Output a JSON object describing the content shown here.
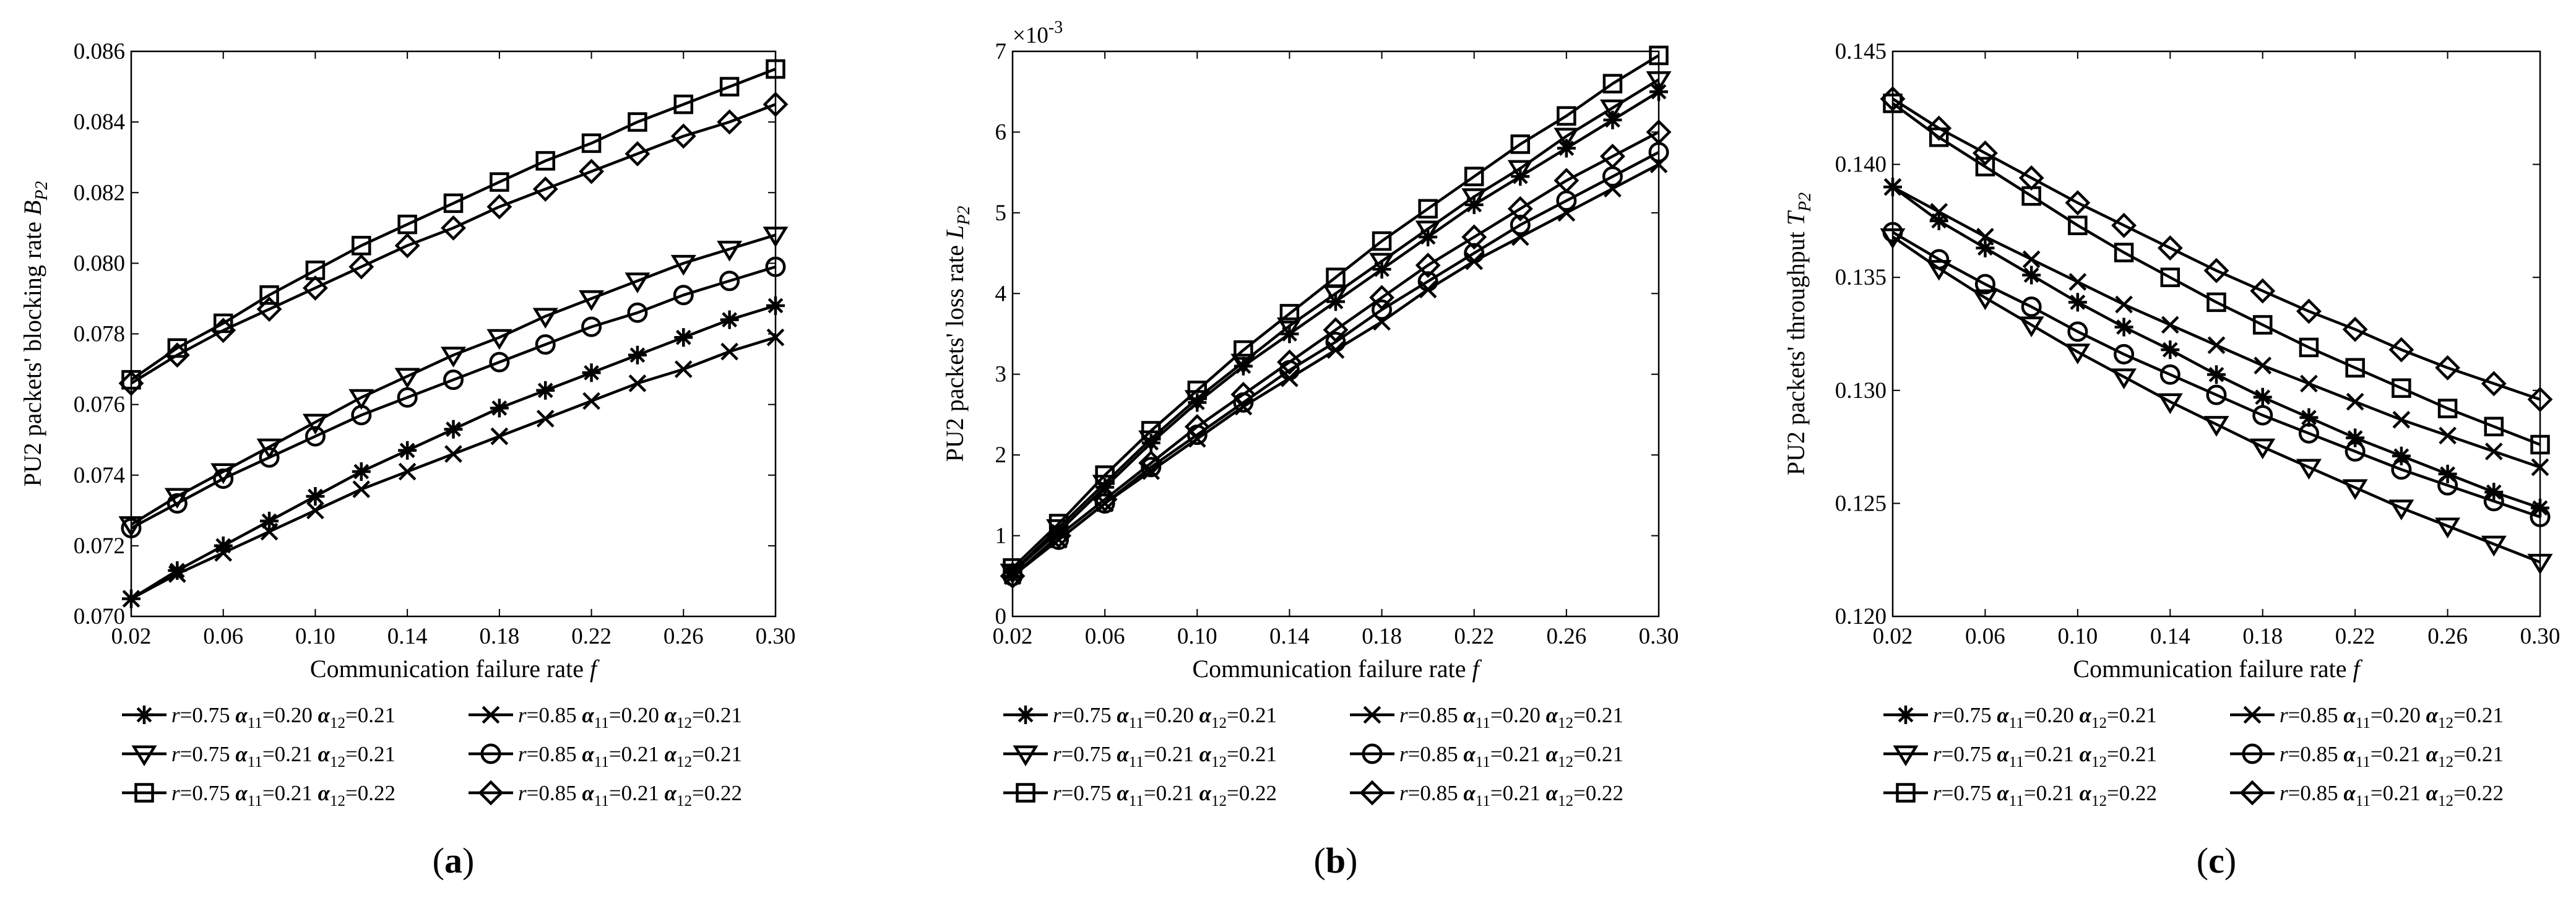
{
  "chart_data": [
    {
      "type": "line",
      "panel_label": "a",
      "xlabel": "Communication failure rate f",
      "ylabel": "PU2 packets' blocking rate B_P2",
      "ylabel_text": "PU2 packets' blocking rate ",
      "ylabel_sym": "B",
      "ylabel_sub": "P2",
      "exponent": "",
      "xlim": [
        0.02,
        0.3
      ],
      "ylim": [
        0.07,
        0.086
      ],
      "xticks": [
        "0.02",
        "0.06",
        "0.10",
        "0.14",
        "0.18",
        "0.22",
        "0.26",
        "0.30"
      ],
      "yticks": [
        "0.070",
        "0.072",
        "0.074",
        "0.076",
        "0.078",
        "0.080",
        "0.082",
        "0.084",
        "0.086"
      ],
      "x": [
        0.02,
        0.04,
        0.06,
        0.08,
        0.1,
        0.12,
        0.14,
        0.16,
        0.18,
        0.2,
        0.22,
        0.24,
        0.26,
        0.28,
        0.3
      ],
      "series": [
        {
          "name": "r=0.75 α11=0.20 α12=0.21",
          "marker": "asterisk",
          "values": [
            0.0705,
            0.0713,
            0.072,
            0.0727,
            0.0734,
            0.0741,
            0.0747,
            0.0753,
            0.0759,
            0.0764,
            0.0769,
            0.0774,
            0.0779,
            0.0784,
            0.0788
          ]
        },
        {
          "name": "r=0.85 α11=0.20 α12=0.21",
          "marker": "x",
          "values": [
            0.0705,
            0.0712,
            0.0718,
            0.0724,
            0.073,
            0.0736,
            0.0741,
            0.0746,
            0.0751,
            0.0756,
            0.0761,
            0.0766,
            0.077,
            0.0775,
            0.0779
          ]
        },
        {
          "name": "r=0.75 α11=0.21 α12=0.21",
          "marker": "triangle-down",
          "values": [
            0.0726,
            0.0734,
            0.0741,
            0.0748,
            0.0755,
            0.0762,
            0.0768,
            0.0774,
            0.0779,
            0.0785,
            0.079,
            0.0795,
            0.08,
            0.0804,
            0.0808
          ]
        },
        {
          "name": "r=0.85 α11=0.21 α12=0.21",
          "marker": "circle",
          "values": [
            0.0725,
            0.0732,
            0.0739,
            0.0745,
            0.0751,
            0.0757,
            0.0762,
            0.0767,
            0.0772,
            0.0777,
            0.0782,
            0.0786,
            0.0791,
            0.0795,
            0.0799
          ]
        },
        {
          "name": "r=0.75 α11=0.21 α12=0.22",
          "marker": "square",
          "values": [
            0.0767,
            0.0776,
            0.0783,
            0.0791,
            0.0798,
            0.0805,
            0.0811,
            0.0817,
            0.0823,
            0.0829,
            0.0834,
            0.084,
            0.0845,
            0.085,
            0.0855
          ]
        },
        {
          "name": "r=0.85 α11=0.21 α12=0.22",
          "marker": "diamond",
          "values": [
            0.0766,
            0.0774,
            0.0781,
            0.0787,
            0.0793,
            0.0799,
            0.0805,
            0.081,
            0.0816,
            0.0821,
            0.0826,
            0.0831,
            0.0836,
            0.084,
            0.0845
          ]
        }
      ]
    },
    {
      "type": "line",
      "panel_label": "b",
      "xlabel": "Communication failure rate f",
      "ylabel": "PU2 packets' loss rate L_P2",
      "ylabel_text": "PU2 packets' loss rate ",
      "ylabel_sym": "L",
      "ylabel_sub": "P2",
      "exponent": "×10^-3",
      "exponent_base": "×10",
      "exponent_power": "-3",
      "xlim": [
        0.02,
        0.3
      ],
      "ylim": [
        0,
        7
      ],
      "xticks": [
        "0.02",
        "0.06",
        "0.10",
        "0.14",
        "0.18",
        "0.22",
        "0.26",
        "0.30"
      ],
      "yticks": [
        "0",
        "1",
        "2",
        "3",
        "4",
        "5",
        "6",
        "7"
      ],
      "x": [
        0.02,
        0.04,
        0.06,
        0.08,
        0.1,
        0.12,
        0.14,
        0.16,
        0.18,
        0.2,
        0.22,
        0.24,
        0.26,
        0.28,
        0.3
      ],
      "series": [
        {
          "name": "r=0.75 α11=0.20 α12=0.21",
          "marker": "asterisk",
          "values": [
            0.55,
            1.05,
            1.6,
            2.15,
            2.65,
            3.1,
            3.5,
            3.9,
            4.3,
            4.7,
            5.1,
            5.45,
            5.8,
            6.15,
            6.5
          ]
        },
        {
          "name": "r=0.85 α11=0.20 α12=0.21",
          "marker": "x",
          "values": [
            0.5,
            0.95,
            1.4,
            1.8,
            2.2,
            2.6,
            2.95,
            3.3,
            3.65,
            4.05,
            4.4,
            4.7,
            5.0,
            5.3,
            5.6
          ]
        },
        {
          "name": "r=0.75 α11=0.21 α12=0.21",
          "marker": "triangle-down",
          "values": [
            0.55,
            1.1,
            1.65,
            2.2,
            2.7,
            3.15,
            3.6,
            4.0,
            4.4,
            4.8,
            5.2,
            5.55,
            5.95,
            6.3,
            6.65
          ]
        },
        {
          "name": "r=0.85 α11=0.21 α12=0.21",
          "marker": "circle",
          "values": [
            0.5,
            0.95,
            1.4,
            1.85,
            2.25,
            2.65,
            3.05,
            3.4,
            3.8,
            4.15,
            4.5,
            4.85,
            5.15,
            5.45,
            5.75
          ]
        },
        {
          "name": "r=0.75 α11=0.21 α12=0.22",
          "marker": "square",
          "values": [
            0.6,
            1.15,
            1.75,
            2.3,
            2.8,
            3.3,
            3.75,
            4.2,
            4.65,
            5.05,
            5.45,
            5.85,
            6.2,
            6.6,
            6.95
          ]
        },
        {
          "name": "r=0.85 α11=0.21 α12=0.22",
          "marker": "diamond",
          "values": [
            0.5,
            1.0,
            1.45,
            1.9,
            2.35,
            2.75,
            3.15,
            3.55,
            3.95,
            4.35,
            4.7,
            5.05,
            5.4,
            5.7,
            6.0
          ]
        }
      ]
    },
    {
      "type": "line",
      "panel_label": "c",
      "xlabel": "Communication failure rate f",
      "ylabel": "PU2 packets' throughput T_P2",
      "ylabel_text": "PU2 packets' throughput ",
      "ylabel_sym": "T",
      "ylabel_sub": "P2",
      "exponent": "",
      "xlim": [
        0.02,
        0.3
      ],
      "ylim": [
        0.12,
        0.145
      ],
      "xticks": [
        "0.02",
        "0.06",
        "0.10",
        "0.14",
        "0.18",
        "0.22",
        "0.26",
        "0.30"
      ],
      "yticks": [
        "0.120",
        "0.125",
        "0.130",
        "0.135",
        "0.140",
        "0.145"
      ],
      "x": [
        0.02,
        0.04,
        0.06,
        0.08,
        0.1,
        0.12,
        0.14,
        0.16,
        0.18,
        0.2,
        0.22,
        0.24,
        0.26,
        0.28,
        0.3
      ],
      "series": [
        {
          "name": "r=0.75 α11=0.20 α12=0.21",
          "marker": "asterisk",
          "values": [
            0.139,
            0.1375,
            0.1363,
            0.1351,
            0.1339,
            0.1328,
            0.1318,
            0.1307,
            0.1297,
            0.1288,
            0.1279,
            0.1271,
            0.1263,
            0.1255,
            0.1248
          ]
        },
        {
          "name": "r=0.85 α11=0.20 α12=0.21",
          "marker": "x",
          "values": [
            0.139,
            0.1379,
            0.1368,
            0.1358,
            0.1348,
            0.1338,
            0.1329,
            0.132,
            0.1311,
            0.1303,
            0.1295,
            0.1287,
            0.128,
            0.1273,
            0.1266
          ]
        },
        {
          "name": "r=0.75 α11=0.21 α12=0.21",
          "marker": "triangle-down",
          "values": [
            0.1368,
            0.1354,
            0.1341,
            0.1329,
            0.1317,
            0.1306,
            0.1295,
            0.1285,
            0.1275,
            0.1266,
            0.1257,
            0.1248,
            0.124,
            0.1232,
            0.1224
          ]
        },
        {
          "name": "r=0.85 α11=0.21 α12=0.21",
          "marker": "circle",
          "values": [
            0.137,
            0.1358,
            0.1347,
            0.1337,
            0.1326,
            0.1316,
            0.1307,
            0.1298,
            0.1289,
            0.1281,
            0.1273,
            0.1265,
            0.1258,
            0.1251,
            0.1244
          ]
        },
        {
          "name": "r=0.75 α11=0.21 α12=0.22",
          "marker": "square",
          "values": [
            0.1427,
            0.1412,
            0.1399,
            0.1386,
            0.1373,
            0.1361,
            0.135,
            0.1339,
            0.1329,
            0.1319,
            0.131,
            0.1301,
            0.1292,
            0.1284,
            0.1276
          ]
        },
        {
          "name": "r=0.85 α11=0.21 α12=0.22",
          "marker": "diamond",
          "values": [
            0.1429,
            0.1416,
            0.1405,
            0.1394,
            0.1383,
            0.1373,
            0.1363,
            0.1353,
            0.1344,
            0.1335,
            0.1327,
            0.1318,
            0.131,
            0.1303,
            0.1296
          ]
        }
      ]
    }
  ],
  "legend": [
    {
      "marker": "asterisk",
      "r": "0.75",
      "a11": "0.20",
      "a12": "0.21"
    },
    {
      "marker": "x",
      "r": "0.85",
      "a11": "0.20",
      "a12": "0.21"
    },
    {
      "marker": "triangle-down",
      "r": "0.75",
      "a11": "0.21",
      "a12": "0.21"
    },
    {
      "marker": "circle",
      "r": "0.85",
      "a11": "0.21",
      "a12": "0.21"
    },
    {
      "marker": "square",
      "r": "0.75",
      "a11": "0.21",
      "a12": "0.22"
    },
    {
      "marker": "diamond",
      "r": "0.85",
      "a11": "0.21",
      "a12": "0.22"
    }
  ],
  "legend_text": {
    "r_prefix": "r",
    "r_eq": "=",
    "alpha_symbol": "α",
    "a11_sub": "11",
    "a12_sub": "12",
    "eq": "="
  }
}
